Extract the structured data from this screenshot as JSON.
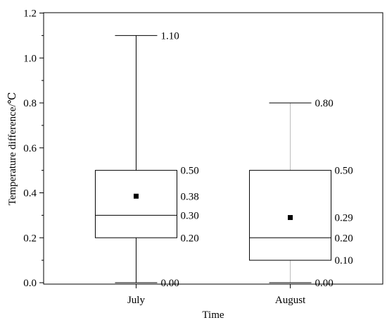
{
  "chart_data": {
    "type": "boxplot",
    "title": "",
    "xlabel": "Time",
    "ylabel": "Temperature difference/℃",
    "ylim": [
      0.0,
      1.2
    ],
    "yticks": [
      "0.0",
      "0.2",
      "0.4",
      "0.6",
      "0.8",
      "1.0",
      "1.2"
    ],
    "grid": false,
    "legend": "none",
    "categories": [
      "July",
      "August"
    ],
    "boxes": [
      {
        "category": "July",
        "min": 0.0,
        "q1": 0.2,
        "median": 0.3,
        "q3": 0.5,
        "max": 1.1,
        "mean": 0.385,
        "labels": {
          "max": "1.10",
          "q3": "0.50",
          "mean": "0.38",
          "median": "0.30",
          "q1": "0.20",
          "min": "0.00"
        }
      },
      {
        "category": "August",
        "min": 0.0,
        "q1": 0.1,
        "median": 0.2,
        "q3": 0.5,
        "max": 0.8,
        "mean": 0.29,
        "labels": {
          "max": "0.80",
          "q3": "0.50",
          "mean": "0.29",
          "median": "0.20",
          "q1": "0.10",
          "min": "0.00"
        }
      }
    ]
  }
}
